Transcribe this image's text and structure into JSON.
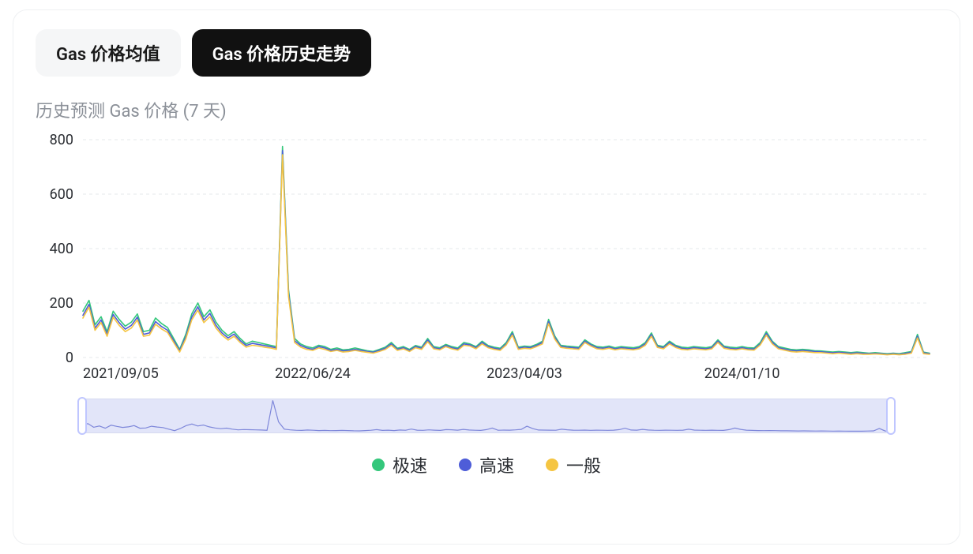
{
  "tabs": {
    "avg": {
      "label": "Gas 价格均值",
      "active": false
    },
    "history": {
      "label": "Gas 价格历史走势",
      "active": true
    }
  },
  "subtitle": "历史预测 Gas 价格 (7 天)",
  "legend": {
    "fast": {
      "label": "极速",
      "color": "#34c77b"
    },
    "high": {
      "label": "高速",
      "color": "#4e5dd8"
    },
    "normal": {
      "label": "一般",
      "color": "#f5c542"
    }
  },
  "chart": {
    "type": "line",
    "background_color": "#ffffff",
    "grid_color": "#e6e8eb",
    "grid_dash": [
      4,
      4
    ],
    "axis_text_color": "#2b2e33",
    "axis_fontsize": 18,
    "line_width": 1.6,
    "ylim": [
      0,
      800
    ],
    "yticks": [
      0,
      200,
      400,
      600,
      800
    ],
    "xlim": [
      0,
      140
    ],
    "xticks": [
      {
        "x": 0,
        "label": "2021/09/05"
      },
      {
        "x": 38,
        "label": "2022/06/24"
      },
      {
        "x": 73,
        "label": "2023/04/03"
      },
      {
        "x": 109,
        "label": "2024/01/10"
      }
    ],
    "series": {
      "fast": {
        "color": "#34c77b",
        "values": [
          170,
          210,
          120,
          150,
          95,
          170,
          140,
          115,
          130,
          160,
          95,
          100,
          145,
          125,
          110,
          70,
          30,
          85,
          160,
          200,
          150,
          175,
          130,
          100,
          80,
          95,
          70,
          50,
          60,
          55,
          50,
          45,
          40,
          775,
          250,
          70,
          50,
          40,
          35,
          45,
          40,
          30,
          35,
          28,
          30,
          35,
          30,
          25,
          22,
          30,
          38,
          55,
          34,
          40,
          30,
          44,
          38,
          70,
          40,
          36,
          48,
          40,
          35,
          55,
          50,
          40,
          60,
          44,
          38,
          34,
          55,
          95,
          38,
          42,
          40,
          48,
          60,
          140,
          80,
          45,
          42,
          40,
          38,
          65,
          50,
          40,
          38,
          42,
          36,
          40,
          38,
          36,
          40,
          55,
          90,
          45,
          40,
          60,
          45,
          38,
          36,
          40,
          38,
          36,
          40,
          65,
          42,
          38,
          36,
          40,
          36,
          35,
          55,
          95,
          60,
          40,
          35,
          30,
          28,
          30,
          28,
          25,
          24,
          22,
          20,
          22,
          20,
          18,
          20,
          18,
          16,
          18,
          16,
          14,
          16,
          14,
          18,
          22,
          85,
          20,
          16
        ]
      },
      "high": {
        "color": "#4e5dd8",
        "values": [
          155,
          195,
          108,
          138,
          85,
          158,
          128,
          104,
          118,
          148,
          85,
          90,
          132,
          114,
          100,
          62,
          25,
          76,
          148,
          186,
          138,
          162,
          118,
          90,
          72,
          86,
          62,
          44,
          52,
          48,
          44,
          40,
          35,
          760,
          238,
          62,
          44,
          35,
          30,
          40,
          35,
          26,
          30,
          24,
          26,
          30,
          26,
          22,
          19,
          26,
          34,
          50,
          30,
          36,
          26,
          40,
          34,
          64,
          36,
          32,
          44,
          36,
          31,
          50,
          46,
          36,
          55,
          40,
          34,
          30,
          50,
          88,
          34,
          38,
          36,
          44,
          55,
          132,
          74,
          41,
          38,
          36,
          34,
          60,
          46,
          36,
          34,
          38,
          32,
          36,
          34,
          32,
          36,
          50,
          84,
          41,
          36,
          55,
          41,
          34,
          32,
          36,
          34,
          32,
          36,
          60,
          38,
          34,
          32,
          36,
          32,
          31,
          50,
          88,
          55,
          36,
          31,
          26,
          24,
          26,
          24,
          22,
          21,
          19,
          17,
          19,
          17,
          15,
          17,
          15,
          14,
          15,
          14,
          12,
          14,
          12,
          15,
          19,
          78,
          17,
          14
        ]
      },
      "normal": {
        "color": "#f5c542",
        "values": [
          145,
          185,
          100,
          128,
          78,
          148,
          118,
          95,
          108,
          138,
          78,
          82,
          122,
          105,
          92,
          55,
          20,
          68,
          138,
          174,
          128,
          150,
          108,
          82,
          64,
          78,
          55,
          38,
          45,
          42,
          38,
          35,
          30,
          745,
          225,
          55,
          38,
          30,
          26,
          35,
          30,
          22,
          26,
          20,
          22,
          26,
          22,
          19,
          16,
          22,
          30,
          45,
          26,
          32,
          22,
          36,
          30,
          58,
          32,
          28,
          40,
          32,
          27,
          45,
          42,
          32,
          50,
          36,
          30,
          26,
          46,
          82,
          30,
          34,
          32,
          40,
          50,
          124,
          68,
          37,
          34,
          32,
          30,
          55,
          42,
          32,
          30,
          34,
          28,
          32,
          30,
          28,
          32,
          45,
          78,
          37,
          32,
          50,
          37,
          30,
          28,
          32,
          30,
          28,
          32,
          55,
          34,
          30,
          28,
          32,
          28,
          27,
          46,
          82,
          50,
          32,
          27,
          22,
          20,
          22,
          20,
          18,
          18,
          16,
          14,
          16,
          14,
          12,
          14,
          12,
          12,
          13,
          12,
          10,
          12,
          10,
          12,
          16,
          72,
          14,
          12
        ]
      }
    }
  },
  "brush": {
    "series_color": "#7a82d6",
    "bg_color": "#ffffff",
    "selection_color": "rgba(140,150,230,0.25)",
    "handle_border": "#bfc6ff"
  }
}
